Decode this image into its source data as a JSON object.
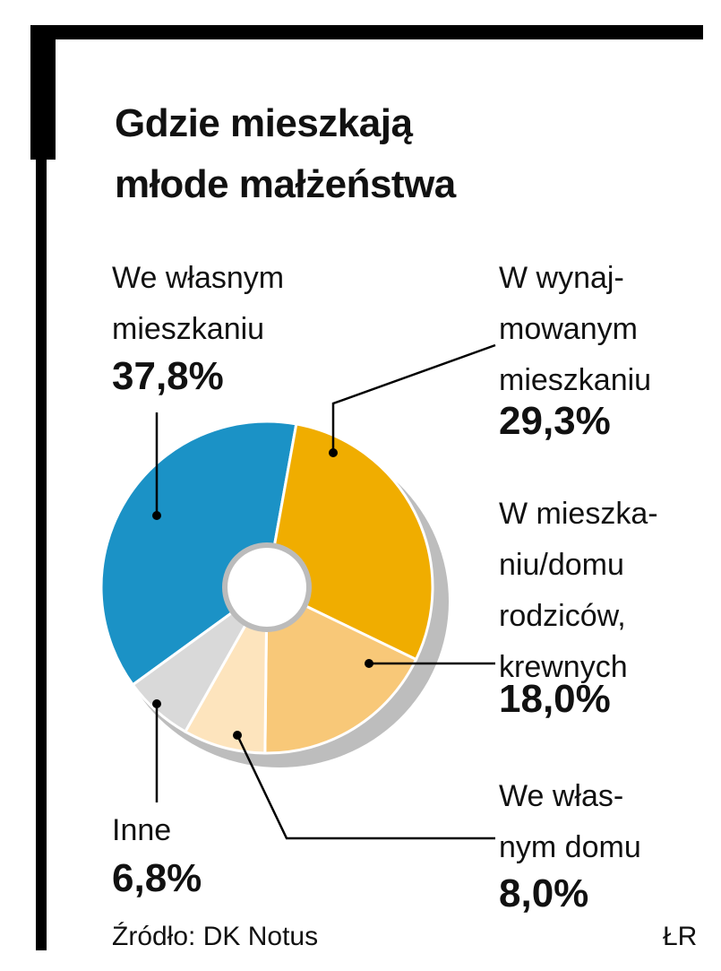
{
  "chart_data": {
    "type": "pie",
    "title": "Gdzie mieszkają\nmłode małżeństwa",
    "categories": [
      "We własnym\nmieszkaniu",
      "W wynaj-\nmowanym\nmieszkaniu",
      "W mieszka-\nniu/domu\nrodziców,\nkrewnych",
      "We włas-\nnym domu",
      "Inne"
    ],
    "values": [
      37.8,
      29.3,
      18.0,
      8.0,
      6.8
    ],
    "value_labels": [
      "37,8%",
      "29,3%",
      "18,0%",
      "8,0%",
      "6,8%"
    ],
    "colors": [
      "#1b92c6",
      "#f0ad00",
      "#f8c878",
      "#fde4bd",
      "#d9d9d9"
    ],
    "source": "Źródło: DK Notus",
    "credit": "ŁR"
  }
}
